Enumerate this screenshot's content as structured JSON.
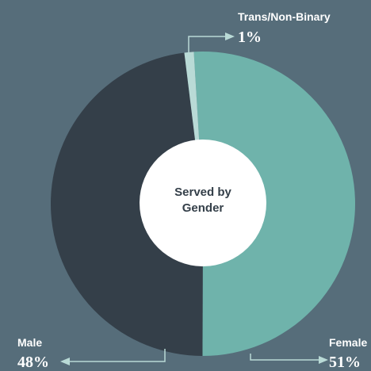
{
  "chart_data": {
    "type": "pie",
    "title": "Served by Gender",
    "categories": [
      "Female",
      "Male",
      "Trans/Non-Binary"
    ],
    "values": [
      51,
      48,
      1
    ],
    "value_labels": [
      "51%",
      "48%",
      "1%"
    ],
    "colors": [
      "#6fb3ab",
      "#343f49",
      "#b9dad6"
    ]
  }
}
